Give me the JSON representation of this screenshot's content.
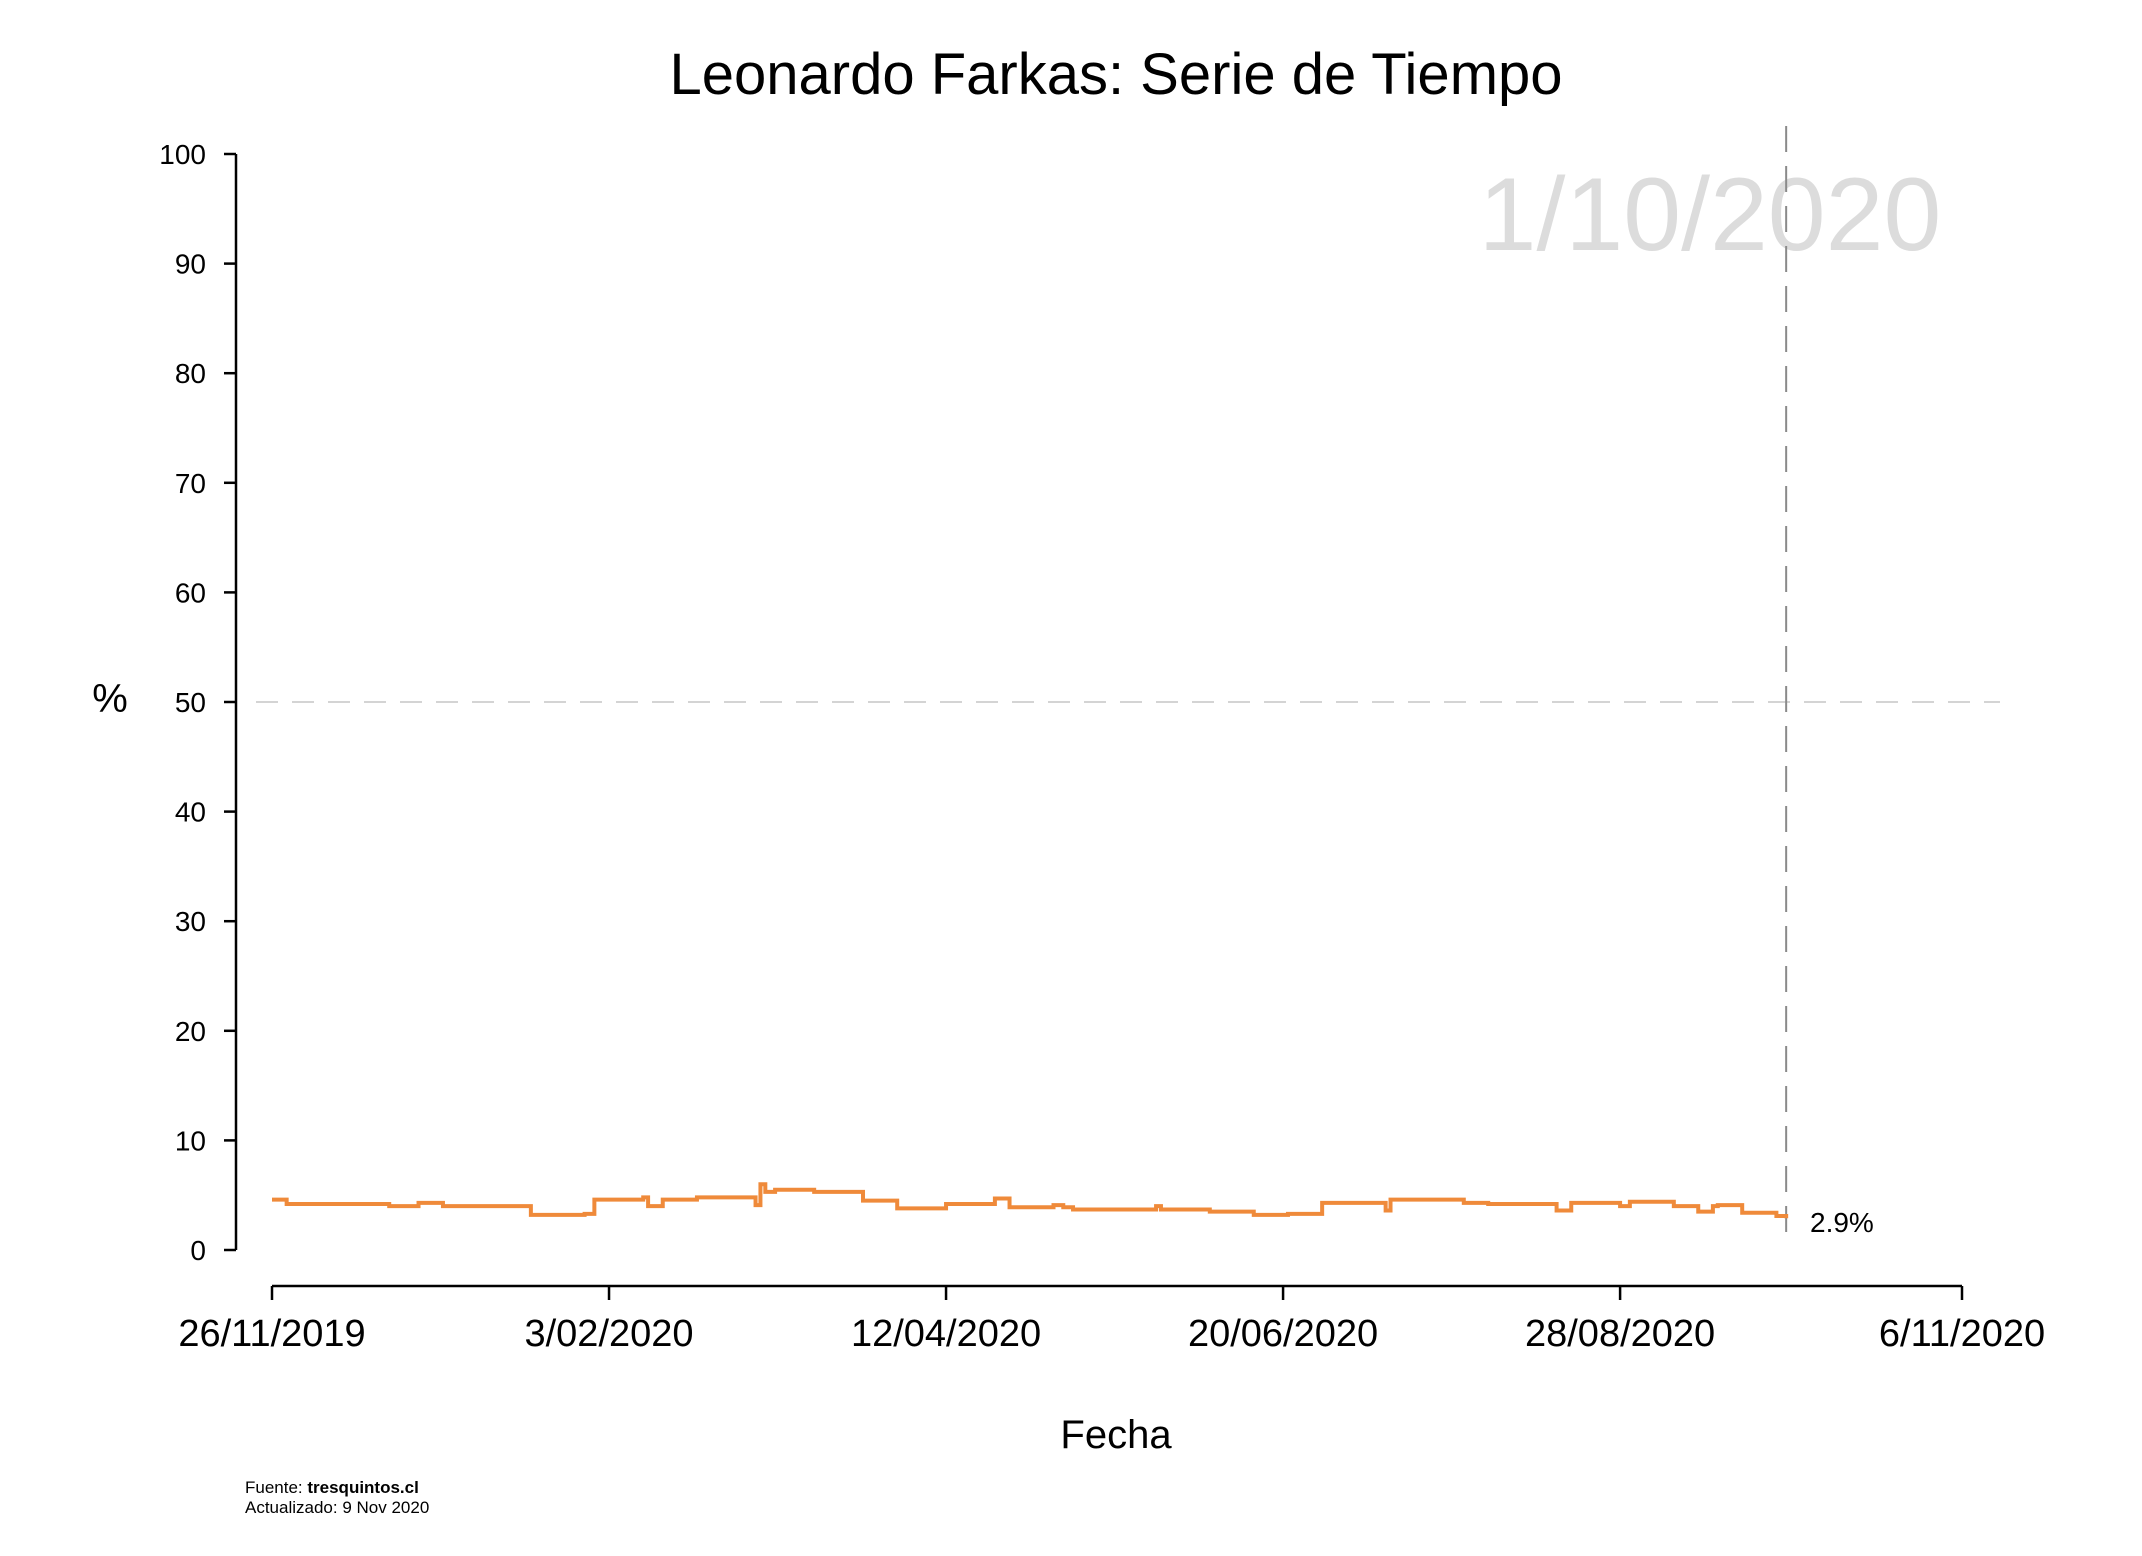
{
  "chart_data": {
    "type": "line",
    "title": "Leonardo Farkas: Serie de Tiempo",
    "xlabel": "Fecha",
    "ylabel": "%",
    "ylim": [
      0,
      100
    ],
    "yticks": [
      0,
      10,
      20,
      30,
      40,
      50,
      60,
      70,
      80,
      90,
      100
    ],
    "xlim": [
      "2019-11-26",
      "2020-11-06"
    ],
    "xticks": [
      {
        "date": "2019-11-26",
        "label": "26/11/2019"
      },
      {
        "date": "2020-02-03",
        "label": "3/02/2020"
      },
      {
        "date": "2020-04-12",
        "label": "12/04/2020"
      },
      {
        "date": "2020-06-20",
        "label": "20/06/2020"
      },
      {
        "date": "2020-08-28",
        "label": "28/08/2020"
      },
      {
        "date": "2020-11-06",
        "label": "6/11/2020"
      }
    ],
    "reference_line_y": 50,
    "current_date_line": "2020-10-01",
    "watermark_date": "1/10/2020",
    "end_label": "2.9%",
    "grid": false,
    "series": [
      {
        "color": "#ef8a3a",
        "step": true,
        "x": [
          "2019-11-26",
          "2019-11-29",
          "2019-12-20",
          "2019-12-26",
          "2019-12-31",
          "2020-01-04",
          "2020-01-18",
          "2020-01-29",
          "2020-01-31",
          "2020-02-10",
          "2020-02-11",
          "2020-02-14",
          "2020-02-19",
          "2020-02-21",
          "2020-03-04",
          "2020-03-05",
          "2020-03-06",
          "2020-03-08",
          "2020-03-12",
          "2020-03-16",
          "2020-03-26",
          "2020-03-30",
          "2020-04-02",
          "2020-04-12",
          "2020-04-15",
          "2020-04-22",
          "2020-04-25",
          "2020-05-04",
          "2020-05-06",
          "2020-05-08",
          "2020-05-25",
          "2020-05-26",
          "2020-06-05",
          "2020-06-14",
          "2020-06-21",
          "2020-06-28",
          "2020-07-10",
          "2020-07-11",
          "2020-07-12",
          "2020-07-27",
          "2020-08-01",
          "2020-08-15",
          "2020-08-18",
          "2020-08-27",
          "2020-08-28",
          "2020-08-30",
          "2020-09-08",
          "2020-09-13",
          "2020-09-16",
          "2020-09-17",
          "2020-09-22",
          "2020-09-25",
          "2020-09-29",
          "2020-10-01"
        ],
        "values": [
          4.6,
          4.2,
          4.0,
          4.3,
          4.0,
          4.0,
          3.2,
          3.3,
          4.6,
          4.8,
          4.0,
          4.6,
          4.6,
          4.8,
          4.1,
          6.0,
          5.3,
          5.5,
          5.5,
          5.3,
          4.5,
          4.5,
          3.8,
          4.2,
          4.2,
          4.7,
          3.9,
          4.1,
          3.9,
          3.7,
          4.0,
          3.7,
          3.5,
          3.2,
          3.3,
          4.3,
          4.3,
          3.6,
          4.6,
          4.3,
          4.2,
          3.6,
          4.3,
          4.3,
          4.0,
          4.4,
          4.0,
          3.5,
          4.0,
          4.1,
          3.4,
          3.4,
          3.1,
          2.9
        ]
      }
    ]
  },
  "footer": {
    "source_prefix": "Fuente: ",
    "source_name": "tresquintos.cl",
    "updated": "Actualizado: 9 Nov 2020"
  }
}
